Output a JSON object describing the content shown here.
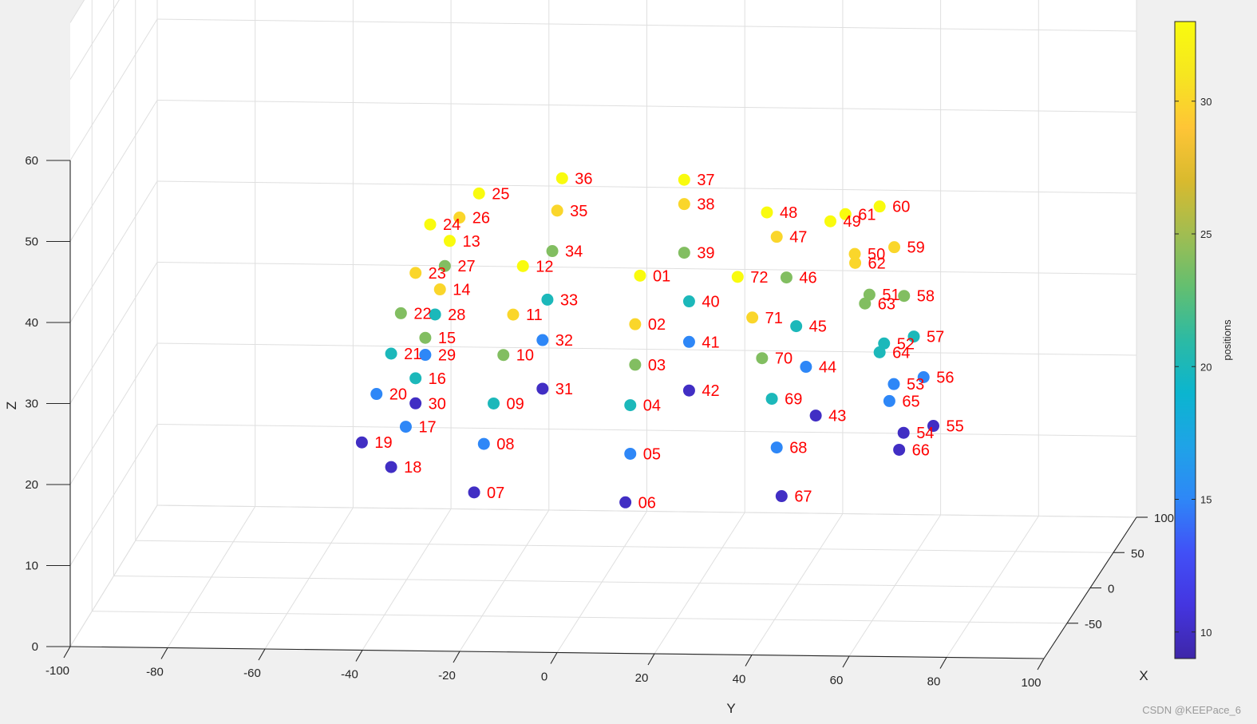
{
  "watermark": "CSDN @KEEPace_6",
  "chart_data": {
    "type": "scatter3d",
    "xlabel": "X",
    "ylabel": "Y",
    "zlabel": "Z",
    "xlim": [
      -100,
      100
    ],
    "ylim": [
      -100,
      100
    ],
    "zlim": [
      0,
      60
    ],
    "xticks": [
      -50,
      0,
      50,
      100
    ],
    "yticks": [
      -100,
      -80,
      -60,
      -40,
      -20,
      0,
      20,
      40,
      60,
      80,
      100
    ],
    "zticks": [
      0,
      10,
      20,
      30,
      40,
      50,
      60
    ],
    "grid": true,
    "colorbar": {
      "label": "positions",
      "range": [
        9,
        33
      ],
      "ticks": [
        10,
        15,
        20,
        25,
        30
      ],
      "colormap": "parula",
      "colors": [
        "#3e26a8",
        "#4435e0",
        "#4150f7",
        "#2e87f7",
        "#1fa3e7",
        "#0bb5cf",
        "#2cbaa4",
        "#63bf70",
        "#a1bd51",
        "#d9ba2e",
        "#fec536",
        "#f6e620",
        "#f9fb0e"
      ]
    },
    "label_color": "#ff0000",
    "points": [
      {
        "label": "01",
        "x": -13,
        "y": 9,
        "z": 39,
        "c": 33
      },
      {
        "label": "02",
        "x": -13,
        "y": 8,
        "z": 33,
        "c": 30
      },
      {
        "label": "03",
        "x": -13,
        "y": 8,
        "z": 28,
        "c": 24
      },
      {
        "label": "04",
        "x": -13,
        "y": 7,
        "z": 23,
        "c": 20
      },
      {
        "label": "05",
        "x": -13,
        "y": 7,
        "z": 17,
        "c": 15
      },
      {
        "label": "06",
        "x": -13,
        "y": 6,
        "z": 11,
        "c": 10
      },
      {
        "label": "07",
        "x": -13,
        "y": -25,
        "z": 12,
        "c": 10
      },
      {
        "label": "08",
        "x": -13,
        "y": -23,
        "z": 18,
        "c": 15
      },
      {
        "label": "09",
        "x": -13,
        "y": -21,
        "z": 23,
        "c": 20
      },
      {
        "label": "10",
        "x": -13,
        "y": -19,
        "z": 29,
        "c": 24
      },
      {
        "label": "11",
        "x": -13,
        "y": -17,
        "z": 34,
        "c": 30
      },
      {
        "label": "12",
        "x": -13,
        "y": -15,
        "z": 40,
        "c": 33
      },
      {
        "label": "13",
        "x": -13,
        "y": -30,
        "z": 43,
        "c": 33
      },
      {
        "label": "14",
        "x": -13,
        "y": -32,
        "z": 37,
        "c": 30
      },
      {
        "label": "15",
        "x": -13,
        "y": -35,
        "z": 31,
        "c": 24
      },
      {
        "label": "16",
        "x": -13,
        "y": -37,
        "z": 26,
        "c": 20
      },
      {
        "label": "17",
        "x": -13,
        "y": -39,
        "z": 20,
        "c": 15
      },
      {
        "label": "18",
        "x": -13,
        "y": -42,
        "z": 15,
        "c": 10
      },
      {
        "label": "19",
        "x": -13,
        "y": -48,
        "z": 18,
        "c": 10
      },
      {
        "label": "20",
        "x": -13,
        "y": -45,
        "z": 24,
        "c": 15
      },
      {
        "label": "21",
        "x": -13,
        "y": -42,
        "z": 29,
        "c": 20
      },
      {
        "label": "22",
        "x": -13,
        "y": -40,
        "z": 34,
        "c": 24
      },
      {
        "label": "23",
        "x": -13,
        "y": -37,
        "z": 39,
        "c": 30
      },
      {
        "label": "24",
        "x": -13,
        "y": -34,
        "z": 45,
        "c": 33
      },
      {
        "label": "25",
        "x": 20,
        "y": -27,
        "z": 46,
        "c": 33
      },
      {
        "label": "26",
        "x": 20,
        "y": -31,
        "z": 43,
        "c": 30
      },
      {
        "label": "27",
        "x": 20,
        "y": -34,
        "z": 37,
        "c": 24
      },
      {
        "label": "28",
        "x": 20,
        "y": -36,
        "z": 31,
        "c": 20
      },
      {
        "label": "29",
        "x": 20,
        "y": -38,
        "z": 26,
        "c": 15
      },
      {
        "label": "30",
        "x": 20,
        "y": -40,
        "z": 20,
        "c": 10
      },
      {
        "label": "31",
        "x": 20,
        "y": -14,
        "z": 22,
        "c": 10
      },
      {
        "label": "32",
        "x": 20,
        "y": -14,
        "z": 28,
        "c": 15
      },
      {
        "label": "33",
        "x": 20,
        "y": -13,
        "z": 33,
        "c": 20
      },
      {
        "label": "34",
        "x": 20,
        "y": -12,
        "z": 39,
        "c": 24
      },
      {
        "label": "35",
        "x": 20,
        "y": -11,
        "z": 44,
        "c": 30
      },
      {
        "label": "36",
        "x": 20,
        "y": -10,
        "z": 48,
        "c": 33
      },
      {
        "label": "37",
        "x": 20,
        "y": 15,
        "z": 48,
        "c": 33
      },
      {
        "label": "38",
        "x": 20,
        "y": 15,
        "z": 45,
        "c": 30
      },
      {
        "label": "39",
        "x": 20,
        "y": 15,
        "z": 39,
        "c": 24
      },
      {
        "label": "40",
        "x": 20,
        "y": 16,
        "z": 33,
        "c": 20
      },
      {
        "label": "41",
        "x": 20,
        "y": 16,
        "z": 28,
        "c": 15
      },
      {
        "label": "42",
        "x": 20,
        "y": 16,
        "z": 22,
        "c": 10
      },
      {
        "label": "43",
        "x": -13,
        "y": 45,
        "z": 22,
        "c": 10
      },
      {
        "label": "44",
        "x": -13,
        "y": 43,
        "z": 28,
        "c": 15
      },
      {
        "label": "45",
        "x": -13,
        "y": 41,
        "z": 33,
        "c": 20
      },
      {
        "label": "46",
        "x": -13,
        "y": 39,
        "z": 39,
        "c": 24
      },
      {
        "label": "47",
        "x": -13,
        "y": 37,
        "z": 44,
        "c": 30
      },
      {
        "label": "48",
        "x": -13,
        "y": 35,
        "z": 47,
        "c": 33
      },
      {
        "label": "49",
        "x": -13,
        "y": 48,
        "z": 46,
        "c": 33
      },
      {
        "label": "50",
        "x": -13,
        "y": 53,
        "z": 42,
        "c": 30
      },
      {
        "label": "51",
        "x": -13,
        "y": 56,
        "z": 37,
        "c": 24
      },
      {
        "label": "52",
        "x": -13,
        "y": 59,
        "z": 31,
        "c": 20
      },
      {
        "label": "53",
        "x": -13,
        "y": 61,
        "z": 26,
        "c": 15
      },
      {
        "label": "54",
        "x": -13,
        "y": 63,
        "z": 20,
        "c": 10
      },
      {
        "label": "55",
        "x": 20,
        "y": 66,
        "z": 18,
        "c": 10
      },
      {
        "label": "56",
        "x": 20,
        "y": 64,
        "z": 24,
        "c": 15
      },
      {
        "label": "57",
        "x": 20,
        "y": 62,
        "z": 29,
        "c": 20
      },
      {
        "label": "58",
        "x": 20,
        "y": 60,
        "z": 34,
        "c": 24
      },
      {
        "label": "59",
        "x": 20,
        "y": 58,
        "z": 40,
        "c": 30
      },
      {
        "label": "60",
        "x": 20,
        "y": 55,
        "z": 45,
        "c": 33
      },
      {
        "label": "61",
        "x": 20,
        "y": 48,
        "z": 44,
        "c": 33
      },
      {
        "label": "62",
        "x": 20,
        "y": 50,
        "z": 38,
        "c": 30
      },
      {
        "label": "63",
        "x": 20,
        "y": 52,
        "z": 33,
        "c": 24
      },
      {
        "label": "64",
        "x": 20,
        "y": 55,
        "z": 27,
        "c": 20
      },
      {
        "label": "65",
        "x": 20,
        "y": 57,
        "z": 21,
        "c": 15
      },
      {
        "label": "66",
        "x": 20,
        "y": 59,
        "z": 15,
        "c": 10
      },
      {
        "label": "67",
        "x": -13,
        "y": 38,
        "z": 12,
        "c": 10
      },
      {
        "label": "68",
        "x": -13,
        "y": 37,
        "z": 18,
        "c": 15
      },
      {
        "label": "69",
        "x": -13,
        "y": 36,
        "z": 24,
        "c": 20
      },
      {
        "label": "70",
        "x": -13,
        "y": 34,
        "z": 29,
        "c": 24
      },
      {
        "label": "71",
        "x": -13,
        "y": 32,
        "z": 34,
        "c": 30
      },
      {
        "label": "72",
        "x": -13,
        "y": 29,
        "z": 39,
        "c": 33
      }
    ]
  }
}
